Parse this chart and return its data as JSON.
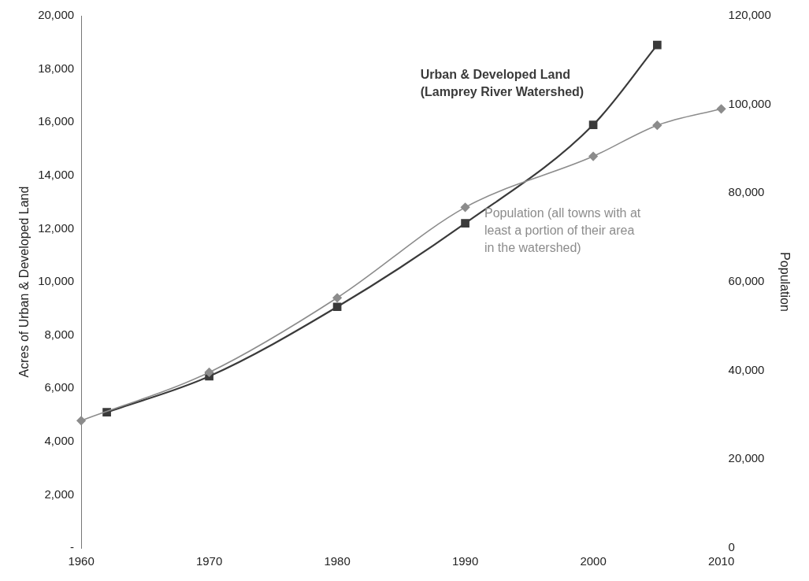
{
  "chart_data": {
    "type": "line",
    "ylabel": "Acres of Urban & Developed Land",
    "y2label": "Population",
    "xlim": [
      1960,
      2010
    ],
    "xticks": [
      1960,
      1970,
      1980,
      1990,
      2000,
      2010
    ],
    "ylim": [
      0,
      20000
    ],
    "yticks": [
      {
        "value": 0,
        "label": "-"
      },
      {
        "value": 2000,
        "label": "2,000"
      },
      {
        "value": 4000,
        "label": "4,000"
      },
      {
        "value": 6000,
        "label": "6,000"
      },
      {
        "value": 8000,
        "label": "8,000"
      },
      {
        "value": 10000,
        "label": "10,000"
      },
      {
        "value": 12000,
        "label": "12,000"
      },
      {
        "value": 14000,
        "label": "14,000"
      },
      {
        "value": 16000,
        "label": "16,000"
      },
      {
        "value": 18000,
        "label": "18,000"
      },
      {
        "value": 20000,
        "label": "20,000"
      }
    ],
    "y2lim": [
      0,
      120000
    ],
    "y2ticks": [
      0,
      {
        "value": 20000,
        "label": "20,000"
      },
      {
        "value": 40000,
        "label": "40,000"
      },
      {
        "value": 60000,
        "label": "60,000"
      },
      {
        "value": 80000,
        "label": "80,000"
      },
      {
        "value": 100000,
        "label": "100,000"
      },
      {
        "value": 120000,
        "label": "120,000"
      }
    ],
    "grid": false,
    "legend": false,
    "series": [
      {
        "name": "Urban & Developed Land (Lamprey River Watershed)",
        "color": "#3a3a3a",
        "marker": "square",
        "x": [
          1962,
          1970,
          1980,
          1990,
          2000,
          2005
        ],
        "values": [
          5100,
          6450,
          9060,
          12200,
          15900,
          18900
        ]
      },
      {
        "name": "Population (all towns with at least a portion of their area in the watershed)",
        "color": "#8c8c8c",
        "marker": "diamond",
        "axis": "y2",
        "x": [
          1960,
          1970,
          1980,
          1990,
          2000,
          2005,
          2010
        ],
        "values": [
          28700,
          39600,
          56400,
          76800,
          88300,
          95300,
          99000
        ]
      }
    ]
  }
}
